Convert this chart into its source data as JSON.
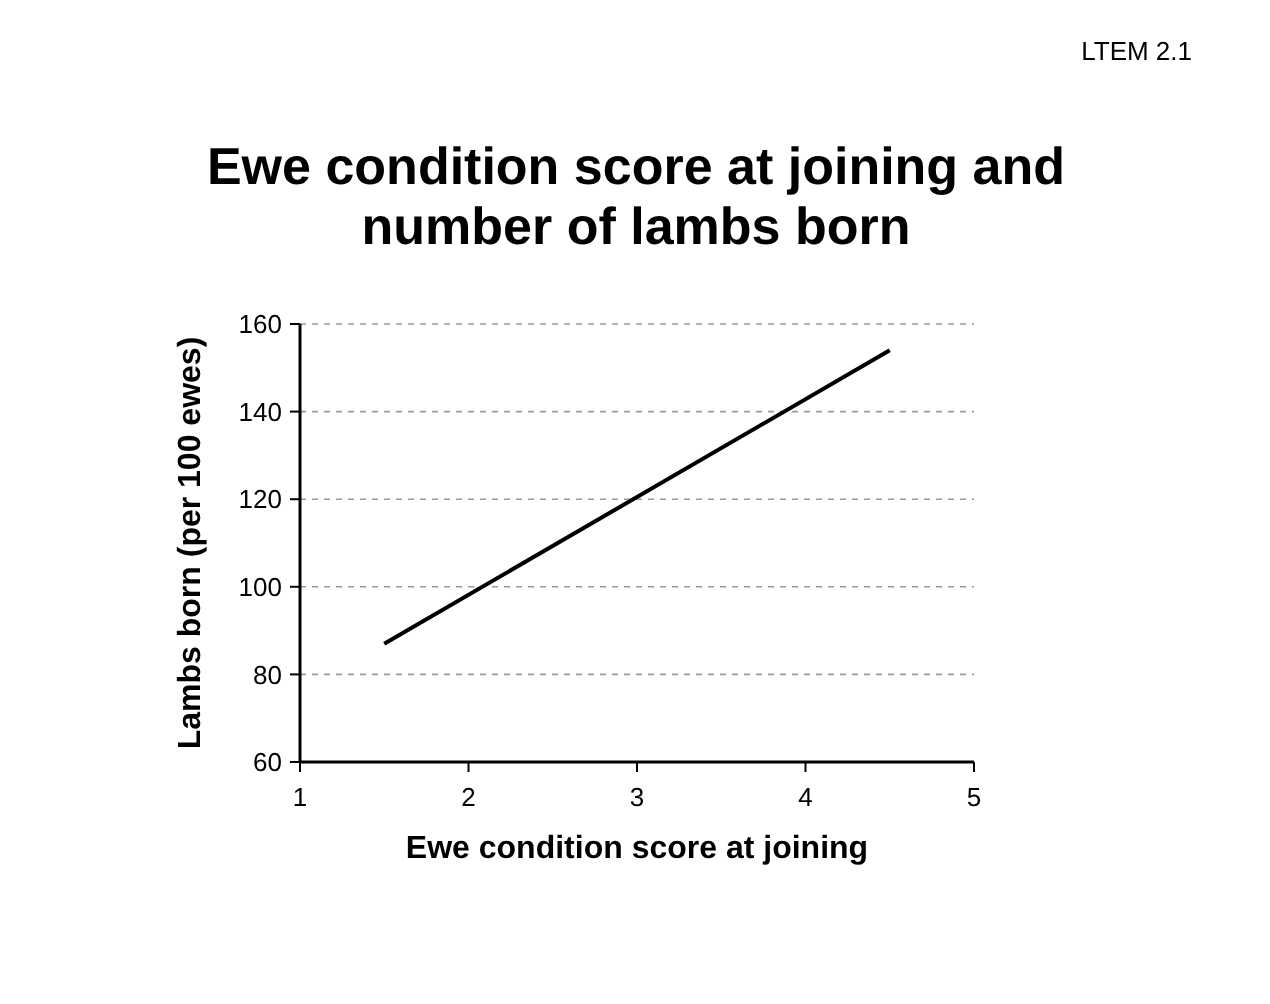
{
  "chart_data": {
    "type": "line",
    "title": "Ewe condition score at joining and number of lambs born",
    "xlabel": "Ewe condition score at joining",
    "ylabel": "Lambs born (per 100 ewes)",
    "annotations": [
      "LTEM 2.1"
    ],
    "x": [
      1.5,
      4.5
    ],
    "series": [
      {
        "color": "#000000",
        "values": [
          87,
          154
        ]
      }
    ],
    "xlim": [
      1,
      5
    ],
    "xticks": [
      1,
      2,
      3,
      4,
      5
    ],
    "ylim": [
      60,
      160
    ],
    "yticks": [
      60,
      80,
      100,
      120,
      140,
      160
    ],
    "grid": "y",
    "line_style": "solid"
  }
}
